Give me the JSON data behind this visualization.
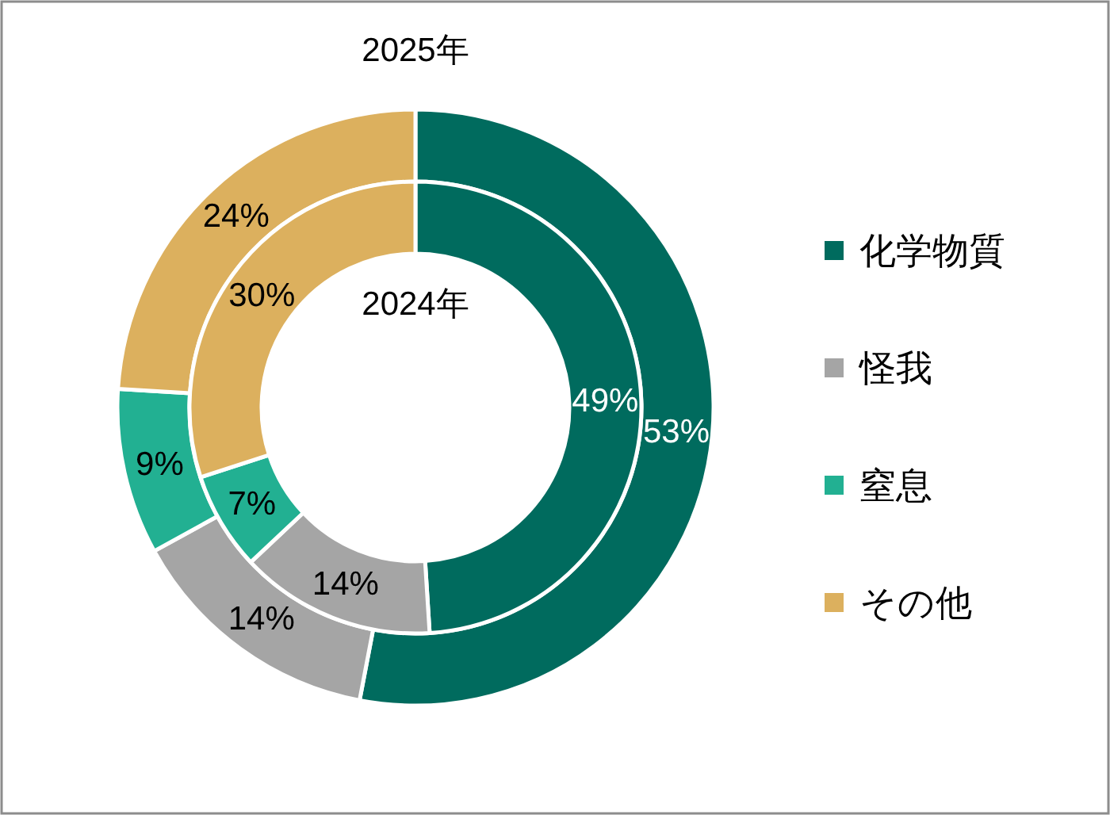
{
  "chart_data": {
    "type": "donut",
    "categories": [
      "化学物質",
      "怪我",
      "窒息",
      "その他"
    ],
    "colors": [
      "#006b5e",
      "#a5a5a5",
      "#22b092",
      "#dcb05e"
    ],
    "series": [
      {
        "name": "2025年",
        "values": [
          53,
          14,
          9,
          24
        ],
        "value_labels": [
          "53%",
          "14%",
          "9%",
          "24%"
        ]
      },
      {
        "name": "2024年",
        "values": [
          49,
          14,
          7,
          30
        ],
        "value_labels": [
          "49%",
          "14%",
          "7%",
          "30%"
        ]
      }
    ],
    "legend": "right"
  }
}
